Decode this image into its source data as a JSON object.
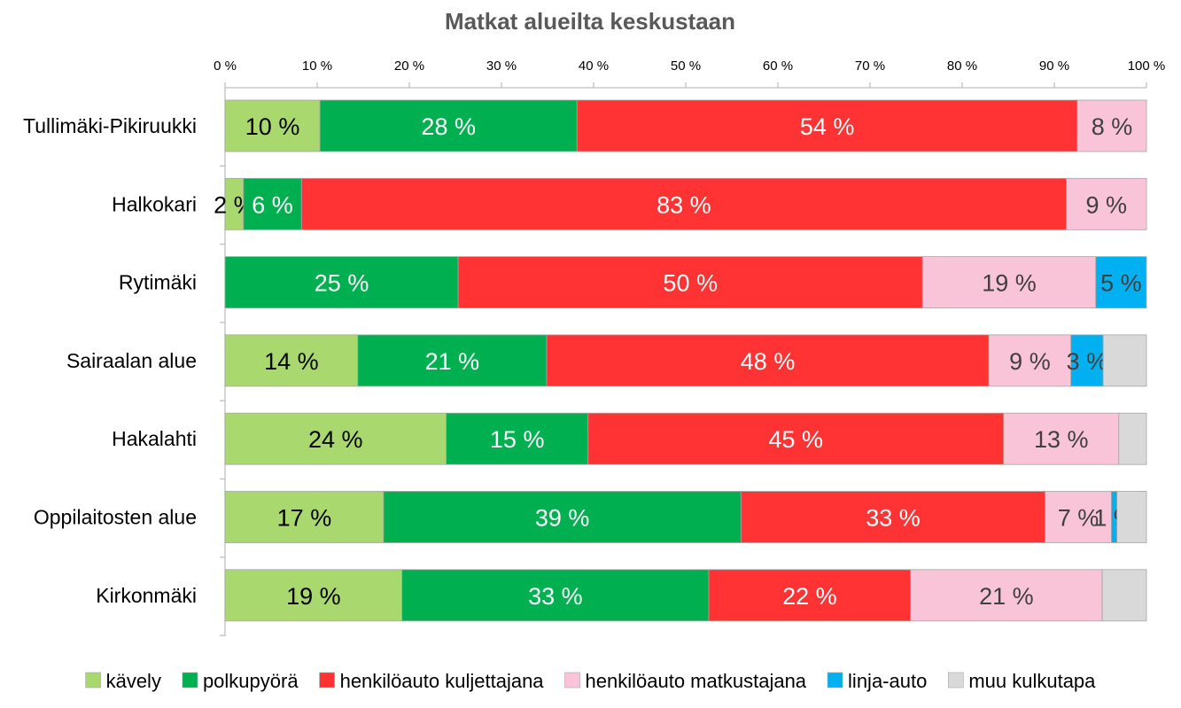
{
  "chart_data": {
    "type": "bar",
    "orientation": "horizontal",
    "stacked": "percent",
    "title": "Matkat alueilta keskustaan",
    "xlim": [
      0,
      100
    ],
    "x_ticks": [
      "0 %",
      "10 %",
      "20 %",
      "30 %",
      "40 %",
      "50 %",
      "60 %",
      "70 %",
      "80 %",
      "90 %",
      "100 %"
    ],
    "x_axis_position": "top",
    "grid": false,
    "legend_position": "bottom",
    "categories": [
      "Tullimäki-Pikiruukki",
      "Halkokari",
      "Rytimäki",
      "Sairaalan alue",
      "Hakalahti",
      "Oppilaitosten alue",
      "Kirkonmäki"
    ],
    "series": [
      {
        "name": "kävely",
        "color": "#a9d86e",
        "label_color": "#000000",
        "values": [
          10.3,
          2.0,
          0,
          14.4,
          24.0,
          17.2,
          19.2
        ],
        "labels": [
          "10 %",
          "2 %",
          "",
          "14 %",
          "24 %",
          "17 %",
          "19 %"
        ]
      },
      {
        "name": "polkupyörä",
        "color": "#00b050",
        "label_color": "#ffffff",
        "values": [
          27.9,
          6.3,
          25.3,
          20.5,
          15.4,
          38.8,
          33.3
        ],
        "labels": [
          "28 %",
          "6 %",
          "25 %",
          "21 %",
          "15 %",
          "39 %",
          "33 %"
        ]
      },
      {
        "name": "henkilöauto kuljettajana",
        "color": "#ff3333",
        "label_color": "#ffffff",
        "values": [
          54.3,
          83.0,
          50.4,
          48.0,
          45.1,
          33.0,
          21.9
        ],
        "labels": [
          "54 %",
          "83 %",
          "50 %",
          "48 %",
          "45 %",
          "33 %",
          "22 %"
        ]
      },
      {
        "name": "henkilöauto matkustajana",
        "color": "#f9c4d7",
        "label_color": "#404040",
        "values": [
          7.5,
          8.7,
          18.8,
          8.9,
          12.5,
          7.2,
          20.8
        ],
        "labels": [
          "8 %",
          "9 %",
          "19 %",
          "9 %",
          "13 %",
          "7 %",
          "21 %"
        ]
      },
      {
        "name": "linja-auto",
        "color": "#00b0f0",
        "label_color": "#404040",
        "values": [
          0,
          0,
          5.5,
          3.5,
          0,
          0.6,
          0
        ],
        "labels": [
          "",
          "",
          "5 %",
          "3 %",
          "",
          "1 %",
          ""
        ]
      },
      {
        "name": "muu kulkutapa",
        "color": "#d9d9d9",
        "label_color": "#404040",
        "values": [
          0,
          0,
          0,
          4.7,
          3.0,
          3.2,
          4.8
        ],
        "labels": [
          "",
          "",
          "",
          "",
          "",
          "",
          ""
        ]
      }
    ]
  }
}
